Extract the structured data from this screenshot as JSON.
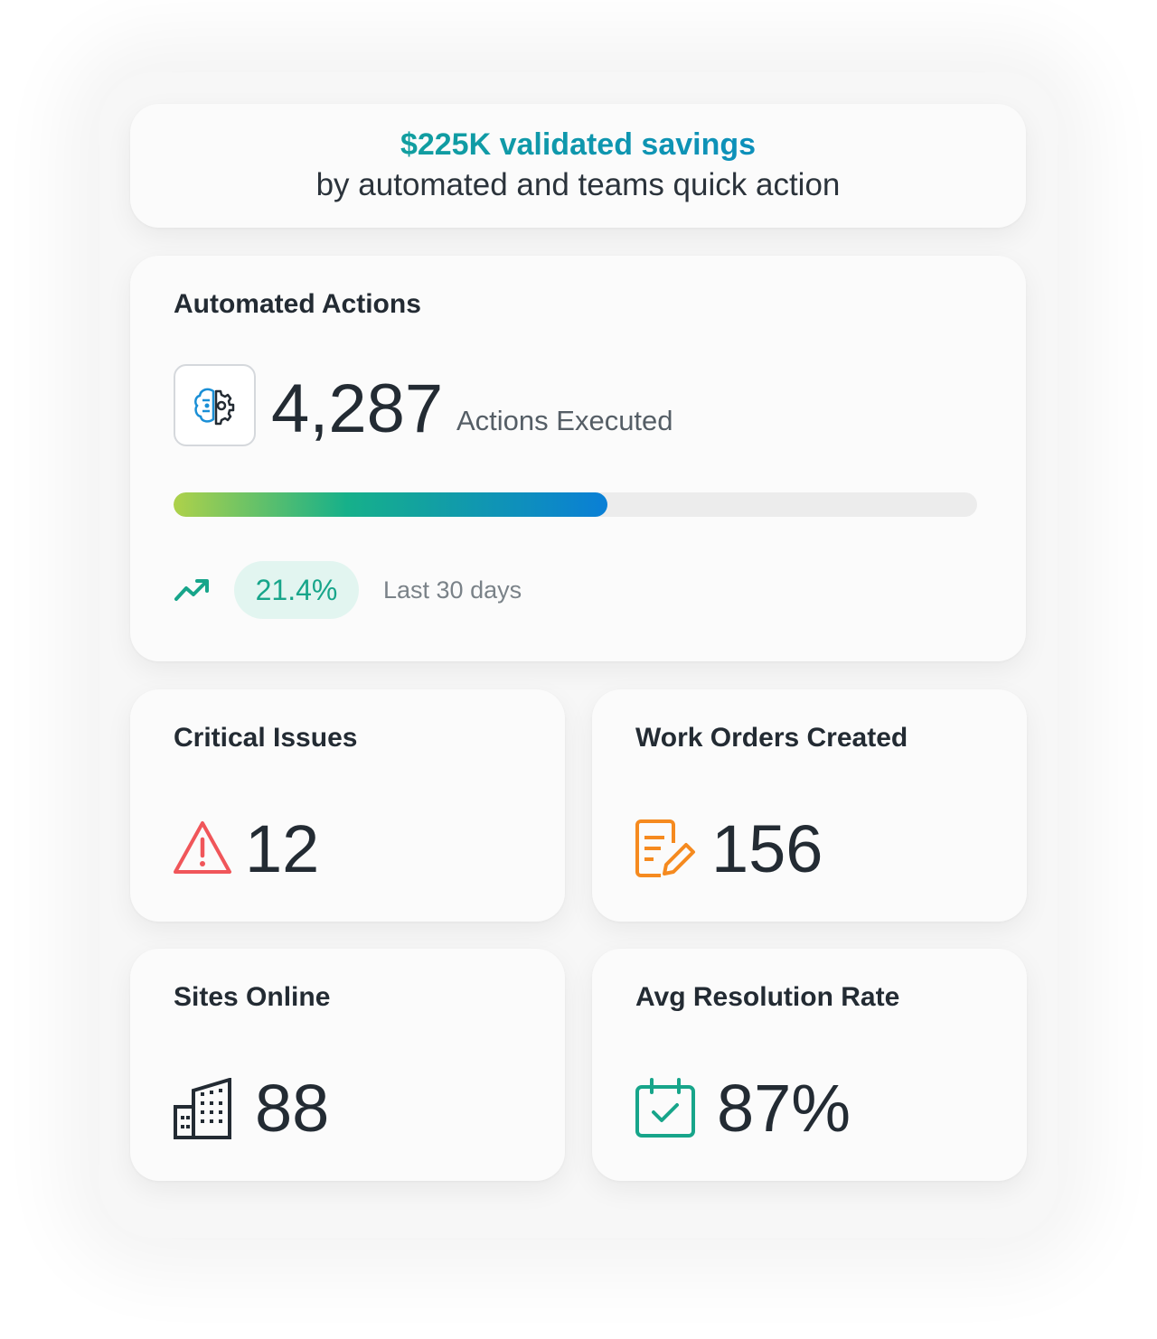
{
  "header": {
    "title": "$225K validated savings",
    "subtitle": "by automated and teams quick action"
  },
  "automated_actions": {
    "title": "Automated Actions",
    "count": "4,287",
    "count_label": "Actions Executed",
    "progress": 54,
    "change": "21.4%",
    "period": "Last 30 days"
  },
  "stats": [
    {
      "title": "Critical Issues",
      "value": "12"
    },
    {
      "title": "Work Orders Created",
      "value": "156"
    },
    {
      "title": "Sites Online",
      "value": "88"
    },
    {
      "title": "Avg Resolution Rate",
      "value": "87%"
    }
  ]
}
